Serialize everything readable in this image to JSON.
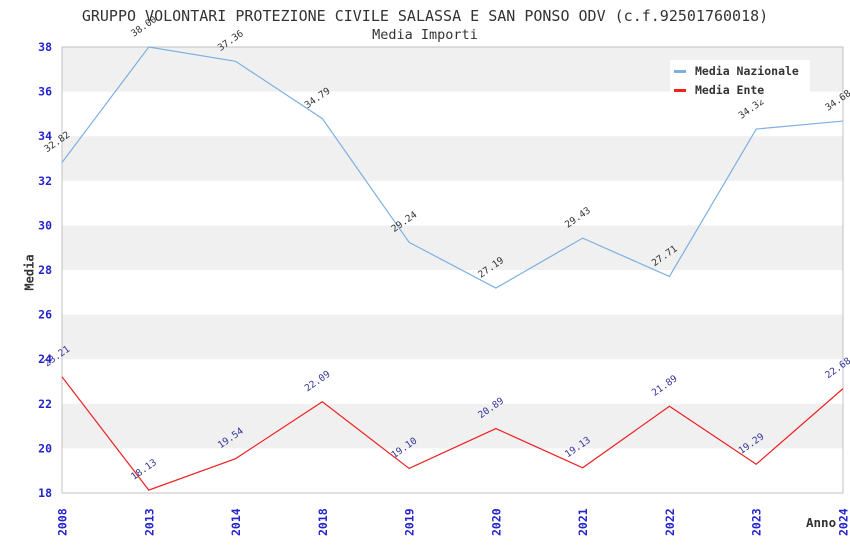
{
  "chart_data": {
    "type": "line",
    "title": "GRUPPO VOLONTARI PROTEZIONE CIVILE SALASSA E SAN PONSO ODV (c.f.92501760018)",
    "subtitle": "Media Importi",
    "xlabel": "Anno",
    "ylabel": "Media",
    "categories": [
      "2008",
      "2013",
      "2014",
      "2018",
      "2019",
      "2020",
      "2021",
      "2022",
      "2023",
      "2024"
    ],
    "ylim": [
      18,
      38
    ],
    "ytick_step": 2,
    "grid": "alternating-horizontal-bands",
    "legend_position": "top-right",
    "series": [
      {
        "name": "Media Nazionale",
        "color": "#7cb0e2",
        "label_color": "#333333",
        "values": [
          32.82,
          38.0,
          37.36,
          34.79,
          29.24,
          27.19,
          29.43,
          27.71,
          34.32,
          34.68
        ]
      },
      {
        "name": "Media Ente",
        "color": "#ee2222",
        "label_color": "#333399",
        "values": [
          23.21,
          18.13,
          19.54,
          22.09,
          19.1,
          20.89,
          19.13,
          21.89,
          19.29,
          22.68
        ]
      }
    ],
    "style": {
      "axis_tick_color": "#2424cc",
      "band_color": "#f0f0f0",
      "plot_border_color": "#c0c0c0",
      "text_color": "#333333",
      "background": "#ffffff"
    }
  }
}
